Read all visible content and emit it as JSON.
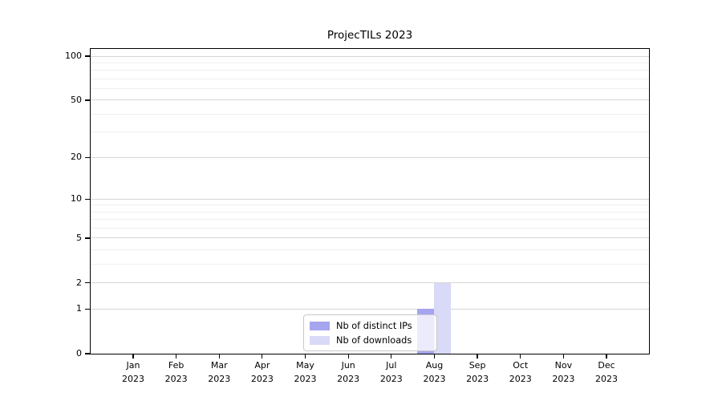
{
  "chart_data": {
    "type": "bar",
    "title": "ProjecTILs 2023",
    "categories": [
      "Jan",
      "Feb",
      "Mar",
      "Apr",
      "May",
      "Jun",
      "Jul",
      "Aug",
      "Sep",
      "Oct",
      "Nov",
      "Dec"
    ],
    "category_year": "2023",
    "series": [
      {
        "name": "Nb of distinct IPs",
        "key": "distinct-ips",
        "color": "#a5a5f0",
        "values": [
          0,
          0,
          0,
          0,
          0,
          0,
          0,
          1,
          0,
          0,
          0,
          0
        ]
      },
      {
        "name": "Nb of downloads",
        "key": "downloads",
        "color": "#d9d9f8",
        "values": [
          0,
          0,
          0,
          0,
          0,
          0,
          0,
          2,
          0,
          0,
          0,
          0
        ]
      }
    ],
    "y_axis": {
      "scale": "log1p",
      "ticks": [
        0,
        1,
        2,
        5,
        10,
        20,
        50,
        100
      ],
      "minor_gridlines": [
        3,
        4,
        6,
        7,
        8,
        9,
        30,
        40,
        60,
        70,
        80,
        90
      ],
      "max": 112
    },
    "grid": {
      "major_color": "#d6d6d6",
      "minor_color": "#efefef"
    },
    "legend": {
      "position": "lower center"
    },
    "colors": {
      "axis": "#000000",
      "background": "#ffffff"
    }
  }
}
